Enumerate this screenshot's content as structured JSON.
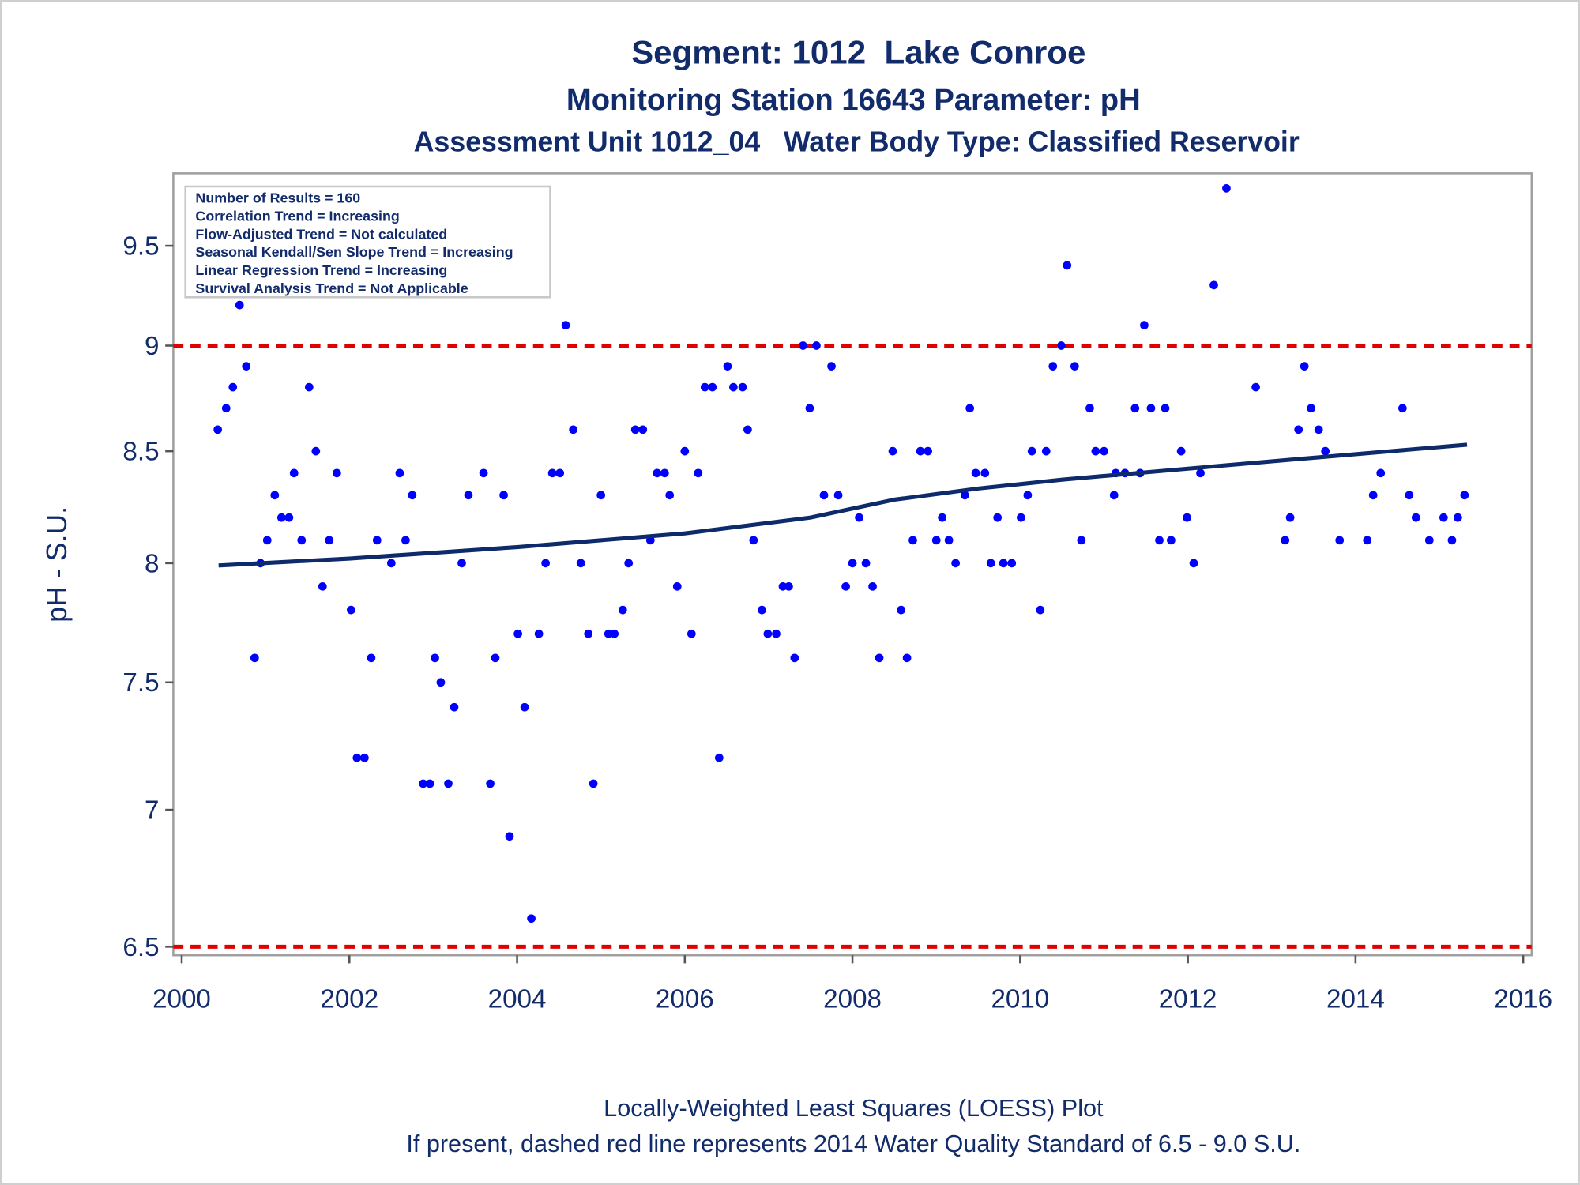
{
  "chart_data": {
    "type": "scatter",
    "title": "Segment: 1012  Lake Conroe",
    "subtitles": [
      "Monitoring Station 16643 Parameter: pH",
      "Assessment Unit 1012_04   Water Body Type: Classified Reservoir"
    ],
    "ylabel": "pH - S.U.",
    "xlim": [
      1999.9,
      2016.1
    ],
    "xticks": [
      2000,
      2002,
      2004,
      2006,
      2008,
      2010,
      2012,
      2014,
      2016
    ],
    "ylim": [
      6.47,
      9.88
    ],
    "yticks": [
      6.5,
      7,
      7.5,
      8,
      8.5,
      9,
      9.5
    ],
    "log_y": true,
    "annotations": [
      "Number of Results = 160",
      "Correlation Trend = Increasing",
      "Flow-Adjusted Trend = Not calculated",
      "Seasonal Kendall/Sen Slope Trend = Increasing",
      "Linear Regression Trend = Increasing",
      "Survival Analysis Trend = Not Applicable"
    ],
    "footnotes": [
      "Locally-Weighted Least Squares (LOESS) Plot",
      "If present, dashed red line represents 2014 Water Quality Standard of 6.5 - 9.0 S.U."
    ],
    "reference_lines": [
      {
        "value": 9,
        "color": "#e00000"
      },
      {
        "value": 6.5,
        "color": "#e00000"
      }
    ],
    "series": [
      {
        "type": "scatter",
        "color": "#0000ff",
        "x": [
          2000.43,
          2000.53,
          2000.61,
          2000.69,
          2000.77,
          2000.87,
          2000.94,
          2001.02,
          2001.11,
          2001.19,
          2001.28,
          2001.34,
          2001.43,
          2001.52,
          2001.6,
          2001.68,
          2001.76,
          2001.85,
          2002.02,
          2002.09,
          2002.18,
          2002.26,
          2002.33,
          2002.5,
          2002.6,
          2002.67,
          2002.75,
          2002.88,
          2002.96,
          2003.02,
          2003.09,
          2003.18,
          2003.25,
          2003.34,
          2003.42,
          2003.6,
          2003.68,
          2003.74,
          2003.84,
          2003.91,
          2004.01,
          2004.09,
          2004.17,
          2004.26,
          2004.34,
          2004.42,
          2004.51,
          2004.58,
          2004.67,
          2004.76,
          2004.85,
          2004.91,
          2005.0,
          2005.09,
          2005.16,
          2005.26,
          2005.33,
          2005.41,
          2005.5,
          2005.59,
          2005.67,
          2005.76,
          2005.82,
          2005.91,
          2006.0,
          2006.08,
          2006.16,
          2006.24,
          2006.33,
          2006.41,
          2006.51,
          2006.58,
          2006.69,
          2006.75,
          2006.82,
          2006.92,
          2006.99,
          2007.09,
          2007.17,
          2007.24,
          2007.31,
          2007.41,
          2007.49,
          2007.57,
          2007.66,
          2007.75,
          2007.83,
          2007.92,
          2008.0,
          2008.08,
          2008.16,
          2008.24,
          2008.32,
          2008.48,
          2008.58,
          2008.65,
          2008.72,
          2008.81,
          2008.9,
          2009.0,
          2009.07,
          2009.15,
          2009.23,
          2009.34,
          2009.4,
          2009.47,
          2009.58,
          2009.65,
          2009.73,
          2009.8,
          2009.9,
          2010.01,
          2010.09,
          2010.14,
          2010.24,
          2010.31,
          2010.39,
          2010.49,
          2010.56,
          2010.65,
          2010.73,
          2010.83,
          2010.9,
          2011.0,
          2011.12,
          2011.14,
          2011.25,
          2011.37,
          2011.43,
          2011.48,
          2011.56,
          2011.66,
          2011.73,
          2011.8,
          2011.92,
          2011.99,
          2012.07,
          2012.15,
          2012.31,
          2012.46,
          2012.81,
          2013.16,
          2013.22,
          2013.32,
          2013.39,
          2013.47,
          2013.56,
          2013.64,
          2013.81,
          2014.14,
          2014.21,
          2014.3,
          2014.56,
          2014.64,
          2014.72,
          2014.88,
          2015.05,
          2015.15,
          2015.22,
          2015.3
        ],
        "values": [
          8.6,
          8.7,
          8.8,
          9.2,
          8.9,
          7.6,
          8.0,
          8.1,
          8.3,
          8.2,
          8.2,
          8.4,
          8.1,
          8.8,
          8.5,
          7.9,
          8.1,
          8.4,
          7.8,
          7.2,
          7.2,
          7.6,
          8.1,
          8.0,
          8.4,
          8.1,
          8.3,
          7.1,
          7.1,
          7.6,
          7.5,
          7.1,
          7.4,
          8.0,
          8.3,
          8.4,
          7.1,
          7.6,
          8.3,
          6.9,
          7.7,
          7.4,
          6.6,
          7.7,
          8.0,
          8.4,
          8.4,
          9.1,
          8.6,
          8.0,
          7.7,
          7.1,
          8.3,
          7.7,
          7.7,
          7.8,
          8.0,
          8.6,
          8.6,
          8.1,
          8.4,
          8.4,
          8.3,
          7.9,
          8.5,
          7.7,
          8.4,
          8.8,
          8.8,
          7.2,
          8.9,
          8.8,
          8.8,
          8.6,
          8.1,
          7.8,
          7.7,
          7.7,
          7.9,
          7.9,
          7.6,
          9.0,
          8.7,
          9.0,
          8.3,
          8.9,
          8.3,
          7.9,
          8.0,
          8.2,
          8.0,
          7.9,
          7.6,
          8.5,
          7.8,
          7.6,
          8.1,
          8.5,
          8.5,
          8.1,
          8.2,
          8.1,
          8.0,
          8.3,
          8.7,
          8.4,
          8.4,
          8.0,
          8.2,
          8.0,
          8.0,
          8.2,
          8.3,
          8.5,
          7.8,
          8.5,
          8.9,
          9.0,
          9.4,
          8.9,
          8.1,
          8.7,
          8.5,
          8.5,
          8.3,
          8.4,
          8.4,
          8.7,
          8.4,
          9.1,
          8.7,
          8.1,
          8.7,
          8.1,
          8.5,
          8.2,
          8.0,
          8.4,
          9.3,
          9.8,
          8.8,
          8.1,
          8.2,
          8.6,
          8.9,
          8.7,
          8.6,
          8.5,
          8.1,
          8.1,
          8.3,
          8.4,
          8.7,
          8.3,
          8.2,
          8.1,
          8.2,
          8.1,
          8.2,
          8.3
        ]
      },
      {
        "type": "line",
        "color": "#0d2a6b",
        "x": [
          2000.44,
          2002,
          2004,
          2006,
          2007.5,
          2008.5,
          2009.5,
          2010.5,
          2012,
          2013.5,
          2015.33
        ],
        "values": [
          7.99,
          8.02,
          8.07,
          8.13,
          8.2,
          8.28,
          8.33,
          8.37,
          8.42,
          8.47,
          8.53
        ]
      }
    ]
  }
}
